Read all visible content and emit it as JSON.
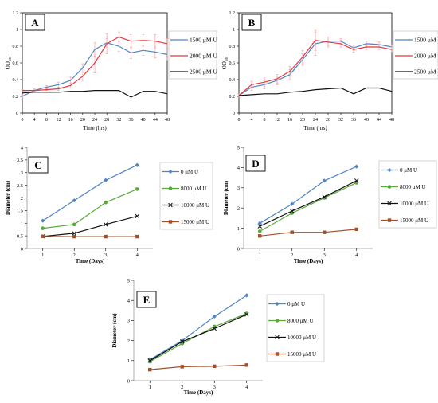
{
  "chart_data": [
    {
      "panel": "A",
      "type": "line",
      "title": "",
      "xlabel": "Time (hrs)",
      "ylabel": "OD",
      "ylabel_sub": "600",
      "xlim": [
        0,
        48
      ],
      "ylim": [
        0,
        1.2
      ],
      "xticks": [
        0,
        4,
        8,
        12,
        16,
        20,
        24,
        28,
        32,
        36,
        40,
        44,
        48
      ],
      "yticks": [
        0,
        0.2,
        0.4,
        0.6,
        0.8,
        1,
        1.2
      ],
      "ytick_labels": [
        "0",
        "0.2",
        "0.4",
        "0.6",
        "0.8",
        "1",
        "1.2"
      ],
      "legend_position": "right",
      "series": [
        {
          "name": "1500 μM U",
          "color": "#4e85c5",
          "x": [
            0,
            4,
            8,
            12,
            16,
            20,
            24,
            28,
            32,
            36,
            40,
            44,
            48
          ],
          "y": [
            0.2,
            0.27,
            0.31,
            0.34,
            0.39,
            0.54,
            0.76,
            0.84,
            0.8,
            0.72,
            0.75,
            0.73,
            0.7
          ],
          "err": [
            0.02,
            0.02,
            0.02,
            0.03,
            0.04,
            0.05,
            0.08,
            0.05,
            0.06,
            0.07,
            0.06,
            0.07,
            0.07
          ]
        },
        {
          "name": "2000 μM U",
          "color": "#e8383d",
          "x": [
            0,
            4,
            8,
            12,
            16,
            20,
            24,
            28,
            32,
            36,
            40,
            44,
            48
          ],
          "y": [
            0.27,
            0.27,
            0.28,
            0.29,
            0.33,
            0.44,
            0.6,
            0.83,
            0.91,
            0.86,
            0.87,
            0.86,
            0.83
          ],
          "err": [
            0.01,
            0.01,
            0.01,
            0.02,
            0.03,
            0.05,
            0.12,
            0.12,
            0.06,
            0.08,
            0.07,
            0.08,
            0.06
          ]
        },
        {
          "name": "2500 μM U",
          "color": "#111111",
          "x": [
            0,
            4,
            8,
            12,
            16,
            20,
            24,
            28,
            32,
            36,
            40,
            44,
            48
          ],
          "y": [
            0.24,
            0.25,
            0.25,
            0.25,
            0.26,
            0.26,
            0.27,
            0.27,
            0.27,
            0.19,
            0.26,
            0.26,
            0.23
          ],
          "err": [
            0,
            0,
            0,
            0,
            0,
            0,
            0,
            0,
            0,
            0,
            0,
            0,
            0
          ]
        }
      ]
    },
    {
      "panel": "B",
      "type": "line",
      "title": "",
      "xlabel": "Time (hrs)",
      "ylabel": "OD",
      "ylabel_sub": "600",
      "xlim": [
        0,
        48
      ],
      "ylim": [
        0,
        1.2
      ],
      "xticks": [
        0,
        4,
        8,
        12,
        16,
        20,
        24,
        28,
        32,
        36,
        40,
        44,
        48
      ],
      "yticks": [
        0,
        0.2,
        0.4,
        0.6,
        0.8,
        1,
        1.2
      ],
      "ytick_labels": [
        "0",
        "0.2",
        "0.4",
        "0.6",
        "0.8",
        "1",
        "1.2"
      ],
      "legend_position": "right",
      "series": [
        {
          "name": "1500 μM U",
          "color": "#4e85c5",
          "x": [
            0,
            4,
            8,
            12,
            16,
            20,
            24,
            28,
            32,
            36,
            40,
            44,
            48
          ],
          "y": [
            0.21,
            0.31,
            0.34,
            0.39,
            0.46,
            0.64,
            0.83,
            0.86,
            0.86,
            0.78,
            0.83,
            0.82,
            0.79
          ],
          "err": [
            0.02,
            0.04,
            0.05,
            0.05,
            0.06,
            0.07,
            0.14,
            0.05,
            0.03,
            0.03,
            0.03,
            0.03,
            0.03
          ]
        },
        {
          "name": "2000 μM U",
          "color": "#e8383d",
          "x": [
            0,
            4,
            8,
            12,
            16,
            20,
            24,
            28,
            32,
            36,
            40,
            44,
            48
          ],
          "y": [
            0.21,
            0.34,
            0.37,
            0.41,
            0.5,
            0.67,
            0.87,
            0.85,
            0.83,
            0.76,
            0.79,
            0.79,
            0.76
          ],
          "err": [
            0.02,
            0.04,
            0.05,
            0.05,
            0.06,
            0.08,
            0.12,
            0.06,
            0.04,
            0.03,
            0.03,
            0.03,
            0.03
          ]
        },
        {
          "name": "2500 μM U",
          "color": "#111111",
          "x": [
            0,
            4,
            8,
            12,
            16,
            20,
            24,
            28,
            32,
            36,
            40,
            44,
            48
          ],
          "y": [
            0.21,
            0.22,
            0.23,
            0.23,
            0.25,
            0.26,
            0.28,
            0.29,
            0.3,
            0.23,
            0.3,
            0.3,
            0.26
          ],
          "err": [
            0,
            0,
            0,
            0,
            0,
            0,
            0,
            0,
            0,
            0,
            0,
            0,
            0
          ]
        }
      ]
    },
    {
      "panel": "C",
      "type": "line",
      "title": "",
      "xlabel": "Time (Days)",
      "ylabel": "Diameter (cm)",
      "ylabel_sub": "",
      "xlim": [
        0.5,
        4.5
      ],
      "ylim": [
        0,
        4
      ],
      "xticks": [
        1,
        2,
        3,
        4
      ],
      "yticks": [
        0,
        0.5,
        1,
        1.5,
        2,
        2.5,
        3,
        3.5,
        4
      ],
      "ytick_labels": [
        "0",
        "0.5",
        "1",
        "1.5",
        "2",
        "2.5",
        "3",
        "3.5",
        "4"
      ],
      "legend_position": "right",
      "series": [
        {
          "name": "0 μM U",
          "color": "#4e85c5",
          "marker": "diamond",
          "x": [
            1,
            2,
            3,
            4
          ],
          "y": [
            1.1,
            1.9,
            2.7,
            3.3
          ]
        },
        {
          "name": "8000 μM U",
          "color": "#5aa93b",
          "marker": "circle",
          "x": [
            1,
            2,
            3,
            4
          ],
          "y": [
            0.8,
            0.95,
            1.82,
            2.35
          ]
        },
        {
          "name": "10000 μM U",
          "color": "#111111",
          "marker": "x",
          "x": [
            1,
            2,
            3,
            4
          ],
          "y": [
            0.48,
            0.6,
            0.95,
            1.28
          ]
        },
        {
          "name": "15000 μM U",
          "color": "#a0522d",
          "marker": "square",
          "x": [
            1,
            2,
            3,
            4
          ],
          "y": [
            0.48,
            0.47,
            0.47,
            0.47
          ]
        }
      ]
    },
    {
      "panel": "D",
      "type": "line",
      "title": "",
      "xlabel": "Time (Days)",
      "ylabel": "Diameter (cm)",
      "ylabel_sub": "",
      "xlim": [
        0.5,
        4.5
      ],
      "ylim": [
        0,
        5
      ],
      "xticks": [
        1,
        2,
        3,
        4
      ],
      "yticks": [
        0,
        1,
        2,
        3,
        4,
        5
      ],
      "ytick_labels": [
        "0",
        "1",
        "2",
        "3",
        "4",
        "5"
      ],
      "legend_position": "right",
      "series": [
        {
          "name": "0 μM U",
          "color": "#4e85c5",
          "marker": "diamond",
          "x": [
            1,
            2,
            3,
            4
          ],
          "y": [
            1.25,
            2.2,
            3.35,
            4.05
          ]
        },
        {
          "name": "8000 μM U",
          "color": "#5aa93b",
          "marker": "circle",
          "x": [
            1,
            2,
            3,
            4
          ],
          "y": [
            0.85,
            1.75,
            2.5,
            3.25
          ]
        },
        {
          "name": "10000 μM U",
          "color": "#111111",
          "marker": "x",
          "x": [
            1,
            2,
            3,
            4
          ],
          "y": [
            1.1,
            1.85,
            2.55,
            3.35
          ]
        },
        {
          "name": "15000 μM U",
          "color": "#a0522d",
          "marker": "square",
          "x": [
            1,
            2,
            3,
            4
          ],
          "y": [
            0.62,
            0.8,
            0.8,
            0.95
          ]
        }
      ]
    },
    {
      "panel": "E",
      "type": "line",
      "title": "",
      "xlabel": "Time (Days)",
      "ylabel": "Diameter (cm)",
      "ylabel_sub": "",
      "xlim": [
        0.5,
        4.5
      ],
      "ylim": [
        0,
        5
      ],
      "xticks": [
        1,
        2,
        3,
        4
      ],
      "yticks": [
        0,
        1,
        2,
        3,
        4,
        5
      ],
      "ytick_labels": [
        "0",
        "1",
        "2",
        "3",
        "4",
        "5"
      ],
      "legend_position": "right",
      "series": [
        {
          "name": "0 μM U",
          "color": "#4e85c5",
          "marker": "diamond",
          "x": [
            1,
            2,
            3,
            4
          ],
          "y": [
            1.05,
            2.0,
            3.2,
            4.25
          ]
        },
        {
          "name": "8000 μM U",
          "color": "#5aa93b",
          "marker": "circle",
          "x": [
            1,
            2,
            3,
            4
          ],
          "y": [
            0.95,
            1.85,
            2.7,
            3.35
          ]
        },
        {
          "name": "10000 μM U",
          "color": "#111111",
          "marker": "x",
          "x": [
            1,
            2,
            3,
            4
          ],
          "y": [
            1.0,
            1.95,
            2.6,
            3.3
          ]
        },
        {
          "name": "15000 μM U",
          "color": "#a0522d",
          "marker": "square",
          "x": [
            1,
            2,
            3,
            4
          ],
          "y": [
            0.55,
            0.7,
            0.72,
            0.78
          ]
        }
      ]
    }
  ]
}
